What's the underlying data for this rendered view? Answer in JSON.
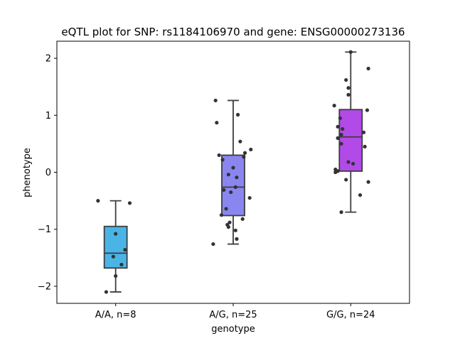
{
  "chart_data": {
    "type": "box",
    "title": "eQTL plot for SNP: rs1184106970 and gene: ENSG00000273136",
    "xlabel": "genotype",
    "ylabel": "phenotype",
    "ylim": [
      -2.3,
      2.3
    ],
    "yticks": [
      -2,
      -1,
      0,
      1,
      2
    ],
    "ytick_labels": [
      "−2",
      "−1",
      "0",
      "1",
      "2"
    ],
    "grid": false,
    "categories": [
      "A/A, n=8",
      "A/G, n=25",
      "G/G, n=24"
    ],
    "boxes": [
      {
        "category": "A/A, n=8",
        "color": "#4ab4e6",
        "whisker_low": -2.1,
        "q1": -1.68,
        "median": -1.42,
        "q3": -0.95,
        "whisker_high": -0.5
      },
      {
        "category": "A/G, n=25",
        "color": "#8a86f0",
        "whisker_low": -1.26,
        "q1": -0.76,
        "median": -0.26,
        "q3": 0.3,
        "whisker_high": 1.26
      },
      {
        "category": "G/G, n=24",
        "color": "#b24ae8",
        "whisker_low": -0.7,
        "q1": 0.02,
        "median": 0.62,
        "q3": 1.1,
        "whisker_high": 2.11
      }
    ],
    "points": [
      [
        -0.5,
        -0.54,
        -1.08,
        -1.36,
        -1.48,
        -1.62,
        -1.82,
        -2.1
      ],
      [
        1.26,
        1.01,
        0.87,
        0.54,
        0.4,
        0.34,
        0.3,
        0.27,
        0.22,
        0.08,
        -0.04,
        -0.09,
        -0.26,
        -0.31,
        -0.35,
        -0.45,
        -0.64,
        -0.75,
        -0.82,
        -0.88,
        -0.92,
        -0.96,
        -1.02,
        -1.17,
        -1.26
      ],
      [
        2.11,
        1.82,
        1.62,
        1.48,
        1.36,
        1.17,
        1.09,
        0.95,
        0.8,
        0.76,
        0.7,
        0.66,
        0.6,
        0.5,
        0.45,
        0.18,
        0.15,
        0.05,
        0.02,
        0.0,
        -0.13,
        -0.17,
        -0.4,
        -0.7
      ]
    ],
    "jitter": [
      [
        -0.15,
        0.12,
        0.0,
        0.08,
        -0.02,
        0.05,
        0.0,
        -0.08
      ],
      [
        -0.15,
        0.04,
        -0.14,
        0.06,
        0.15,
        0.1,
        -0.12,
        0.09,
        -0.09,
        0.0,
        -0.04,
        0.03,
        0.02,
        -0.08,
        -0.02,
        0.14,
        -0.06,
        -0.1,
        0.08,
        -0.03,
        -0.05,
        -0.04,
        0.02,
        0.03,
        -0.17
      ],
      [
        0.0,
        0.15,
        -0.04,
        -0.02,
        -0.02,
        -0.14,
        0.14,
        -0.09,
        -0.11,
        -0.07,
        0.11,
        -0.08,
        -0.11,
        -0.08,
        0.12,
        -0.02,
        0.02,
        -0.13,
        -0.11,
        -0.13,
        -0.04,
        0.15,
        0.08,
        -0.08
      ]
    ]
  }
}
